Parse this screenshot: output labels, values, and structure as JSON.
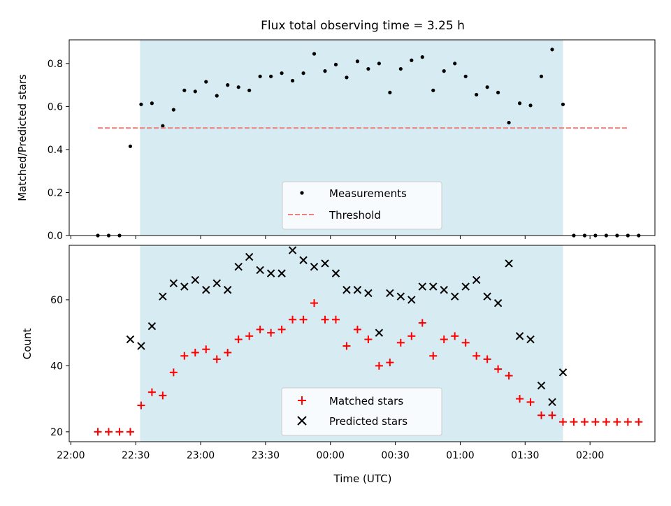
{
  "chart_data": [
    {
      "type": "scatter",
      "title": "Flux total observing time = 3.25 h",
      "xlabel": "",
      "ylabel": "Matched/Predicted stars",
      "xlim_minutes": [
        -3,
        1080
      ],
      "ylim": [
        0,
        0.91
      ],
      "yticks": [
        0.0,
        0.2,
        0.4,
        0.6,
        0.8
      ],
      "ytick_labels": [
        "0.0",
        "0.2",
        "0.4",
        "0.6",
        "0.8"
      ],
      "shaded_span_minutes": [
        128,
        910
      ],
      "shade_color": "#add8e6",
      "grid": false,
      "legend_position": "lower-center",
      "series": [
        {
          "name": "Measurements",
          "kind": "points",
          "color": "#000000",
          "x_minutes": [
            50,
            70,
            90,
            110,
            130,
            150,
            170,
            190,
            210,
            230,
            250,
            270,
            290,
            310,
            330,
            350,
            370,
            390,
            410,
            430,
            450,
            470,
            490,
            510,
            530,
            550,
            570,
            590,
            610,
            630,
            650,
            670,
            690,
            710,
            730,
            750,
            770,
            790,
            810,
            830,
            850,
            870,
            890,
            910,
            930,
            950,
            970,
            990,
            1010,
            1030,
            1050
          ],
          "y": [
            0.0,
            0.0,
            0.0,
            0.415,
            0.61,
            0.615,
            0.51,
            0.585,
            0.675,
            0.67,
            0.715,
            0.65,
            0.7,
            0.69,
            0.675,
            0.74,
            0.74,
            0.755,
            0.72,
            0.755,
            0.845,
            0.765,
            0.795,
            0.735,
            0.81,
            0.775,
            0.8,
            0.665,
            0.775,
            0.815,
            0.83,
            0.675,
            0.765,
            0.8,
            0.74,
            0.655,
            0.69,
            0.665,
            0.525,
            0.615,
            0.605,
            0.74,
            0.865,
            0.61,
            0.0,
            0.0,
            0.0,
            0.0,
            0.0,
            0.0,
            0.0
          ]
        },
        {
          "name": "Threshold",
          "kind": "dashed-line",
          "color": "#f08080",
          "x_range_minutes": [
            50,
            1030
          ],
          "y": 0.5
        }
      ]
    },
    {
      "type": "scatter",
      "title": "",
      "xlabel": "Time (UTC)",
      "ylabel": "Count",
      "xlim_minutes": [
        -3,
        1080
      ],
      "ylim": [
        17,
        76.5
      ],
      "yticks": [
        20,
        40,
        60
      ],
      "ytick_labels": [
        "20",
        "40",
        "60"
      ],
      "xticks_minutes": [
        0,
        120,
        240,
        360,
        480,
        600,
        720,
        840,
        960
      ],
      "xtick_labels": [
        "22:00",
        "22:30",
        "23:00",
        "23:30",
        "00:00",
        "00:30",
        "01:00",
        "01:30",
        "02:00"
      ],
      "shaded_span_minutes": [
        128,
        910
      ],
      "shade_color": "#add8e6",
      "grid": false,
      "legend_position": "lower-center",
      "series": [
        {
          "name": "Matched stars",
          "kind": "plus",
          "color": "#ff0000",
          "x_minutes": [
            50,
            70,
            90,
            110,
            130,
            150,
            170,
            190,
            210,
            230,
            250,
            270,
            290,
            310,
            330,
            350,
            370,
            390,
            410,
            430,
            450,
            470,
            490,
            510,
            530,
            550,
            570,
            590,
            610,
            630,
            650,
            670,
            690,
            710,
            730,
            750,
            770,
            790,
            810,
            830,
            850,
            870,
            890,
            910,
            930,
            950,
            970,
            990,
            1010,
            1030,
            1050
          ],
          "y": [
            20,
            20,
            20,
            20,
            28,
            32,
            31,
            38,
            43,
            44,
            45,
            42,
            44,
            48,
            49,
            51,
            50,
            51,
            54,
            54,
            59,
            54,
            54,
            46,
            51,
            48,
            40,
            41,
            47,
            49,
            53,
            43,
            48,
            49,
            47,
            43,
            42,
            39,
            37,
            30,
            29,
            25,
            25,
            23,
            23,
            23,
            23,
            23,
            23,
            23,
            23
          ]
        },
        {
          "name": "Predicted stars",
          "kind": "cross",
          "color": "#000000",
          "x_minutes": [
            110,
            130,
            150,
            170,
            190,
            210,
            230,
            250,
            270,
            290,
            310,
            330,
            350,
            370,
            390,
            410,
            430,
            450,
            470,
            490,
            510,
            530,
            550,
            570,
            590,
            610,
            630,
            650,
            670,
            690,
            710,
            730,
            750,
            770,
            790,
            810,
            830,
            850,
            870,
            890,
            910
          ],
          "y": [
            48,
            46,
            52,
            61,
            65,
            64,
            66,
            63,
            65,
            63,
            70,
            73,
            69,
            68,
            68,
            75,
            72,
            70,
            71,
            68,
            63,
            63,
            62,
            50,
            62,
            61,
            60,
            64,
            64,
            63,
            61,
            64,
            66,
            61,
            59,
            71,
            49,
            48,
            34,
            29,
            38
          ]
        }
      ]
    }
  ]
}
